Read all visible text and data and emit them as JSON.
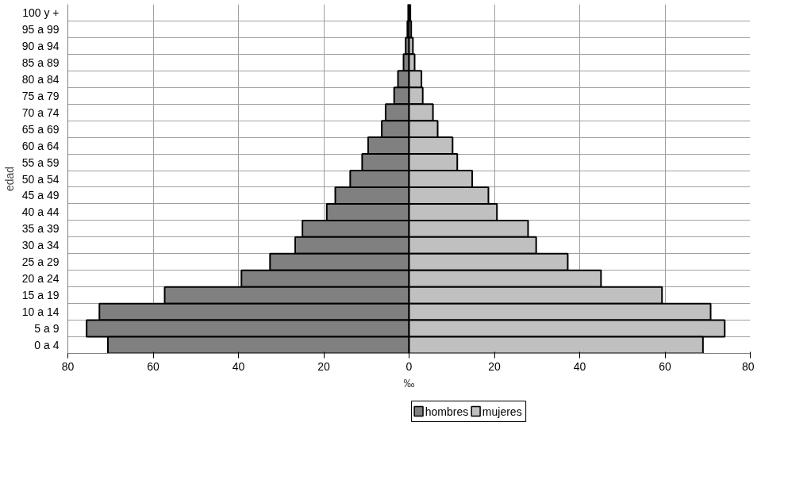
{
  "chart_data": {
    "type": "bar",
    "orientation": "horizontal",
    "xlabel": "‰",
    "ylabel": "edad",
    "categories": [
      "100 y +",
      "95 a 99",
      "90 a 94",
      "85 a 89",
      "80 a 84",
      "75 a 79",
      "70 a 74",
      "65 a 69",
      "60 a 64",
      "55 a 59",
      "50 a 54",
      "45 a 49",
      "40 a 44",
      "35 a 39",
      "30 a 34",
      "25 a 29",
      "20 a 24",
      "15 a 19",
      "10 a 14",
      "5 a 9",
      "0 a 4"
    ],
    "series": [
      {
        "name": "hombres",
        "color": "#808080",
        "values": [
          -0.2,
          -0.4,
          -0.8,
          -1.3,
          -2.6,
          -3.5,
          -5.5,
          -6.4,
          -9.6,
          -11.0,
          -13.8,
          -17.3,
          -19.3,
          -25.0,
          -26.7,
          -32.6,
          -39.3,
          -57.3,
          -72.6,
          -75.6,
          -70.6
        ]
      },
      {
        "name": "mujeres",
        "color": "#c0c0c0",
        "values": [
          0.3,
          0.5,
          0.9,
          1.3,
          2.9,
          3.2,
          5.6,
          6.7,
          10.2,
          11.3,
          14.8,
          18.6,
          20.6,
          27.9,
          29.8,
          37.2,
          45.0,
          59.3,
          70.7,
          74.0,
          68.9
        ]
      }
    ],
    "xlim": [
      -80,
      80
    ],
    "xticks": [
      {
        "value": -80,
        "label": "80"
      },
      {
        "value": -60,
        "label": "60"
      },
      {
        "value": -40,
        "label": "40"
      },
      {
        "value": -20,
        "label": "20"
      },
      0,
      20,
      40,
      60,
      80
    ],
    "grid": true,
    "legend": "bottom",
    "stacked": true
  }
}
